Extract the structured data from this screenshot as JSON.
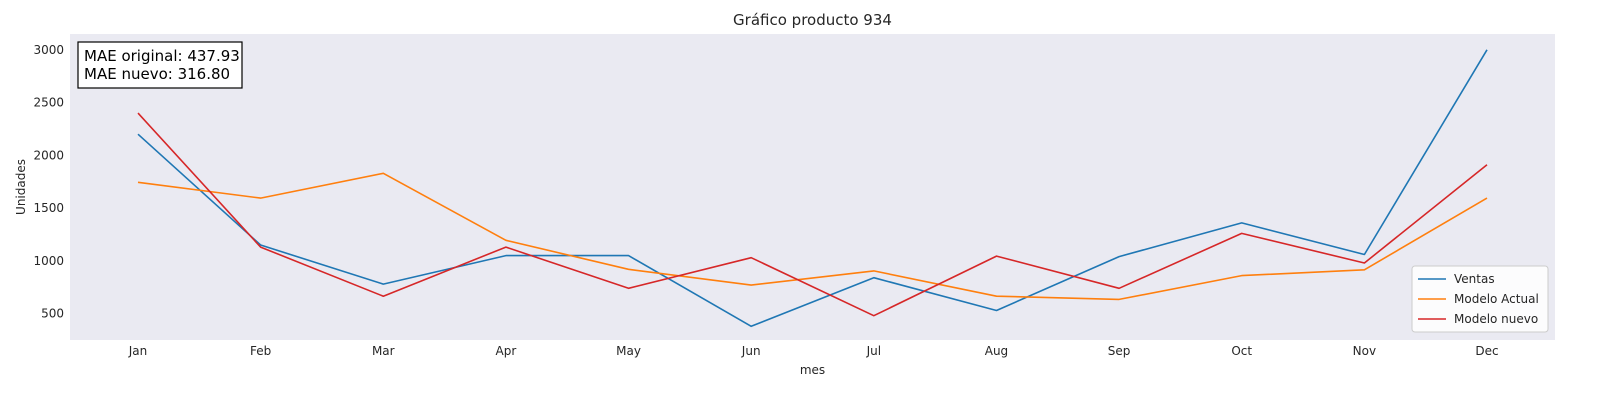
{
  "chart_data": {
    "type": "line",
    "title": "Gráfico producto 934",
    "xlabel": "mes",
    "ylabel": "Unidades",
    "categories": [
      "Jan",
      "Feb",
      "Mar",
      "Apr",
      "May",
      "Jun",
      "Jul",
      "Aug",
      "Sep",
      "Oct",
      "Nov",
      "Dec"
    ],
    "ylim": [
      250,
      3150
    ],
    "yticks": [
      500,
      1000,
      1500,
      2000,
      2500,
      3000
    ],
    "grid": false,
    "legend_position": "bottom-right",
    "series": [
      {
        "name": "Ventas",
        "color": "#1f77b4",
        "values": [
          2200,
          1150,
          780,
          1050,
          1050,
          380,
          840,
          530,
          1040,
          1360,
          1060,
          3000
        ]
      },
      {
        "name": "Modelo Actual",
        "color": "#ff7f0e",
        "values": [
          1745,
          1595,
          1830,
          1195,
          920,
          770,
          905,
          665,
          635,
          860,
          915,
          1595
        ]
      },
      {
        "name": "Modelo nuevo",
        "color": "#d62728",
        "values": [
          2400,
          1130,
          665,
          1130,
          740,
          1030,
          480,
          1045,
          740,
          1260,
          980,
          1910
        ]
      }
    ],
    "annotation": {
      "lines": [
        "MAE original: 437.93",
        "MAE nuevo: 316.80"
      ],
      "position": "top-left"
    },
    "plot_background": "#eaeaf2"
  }
}
